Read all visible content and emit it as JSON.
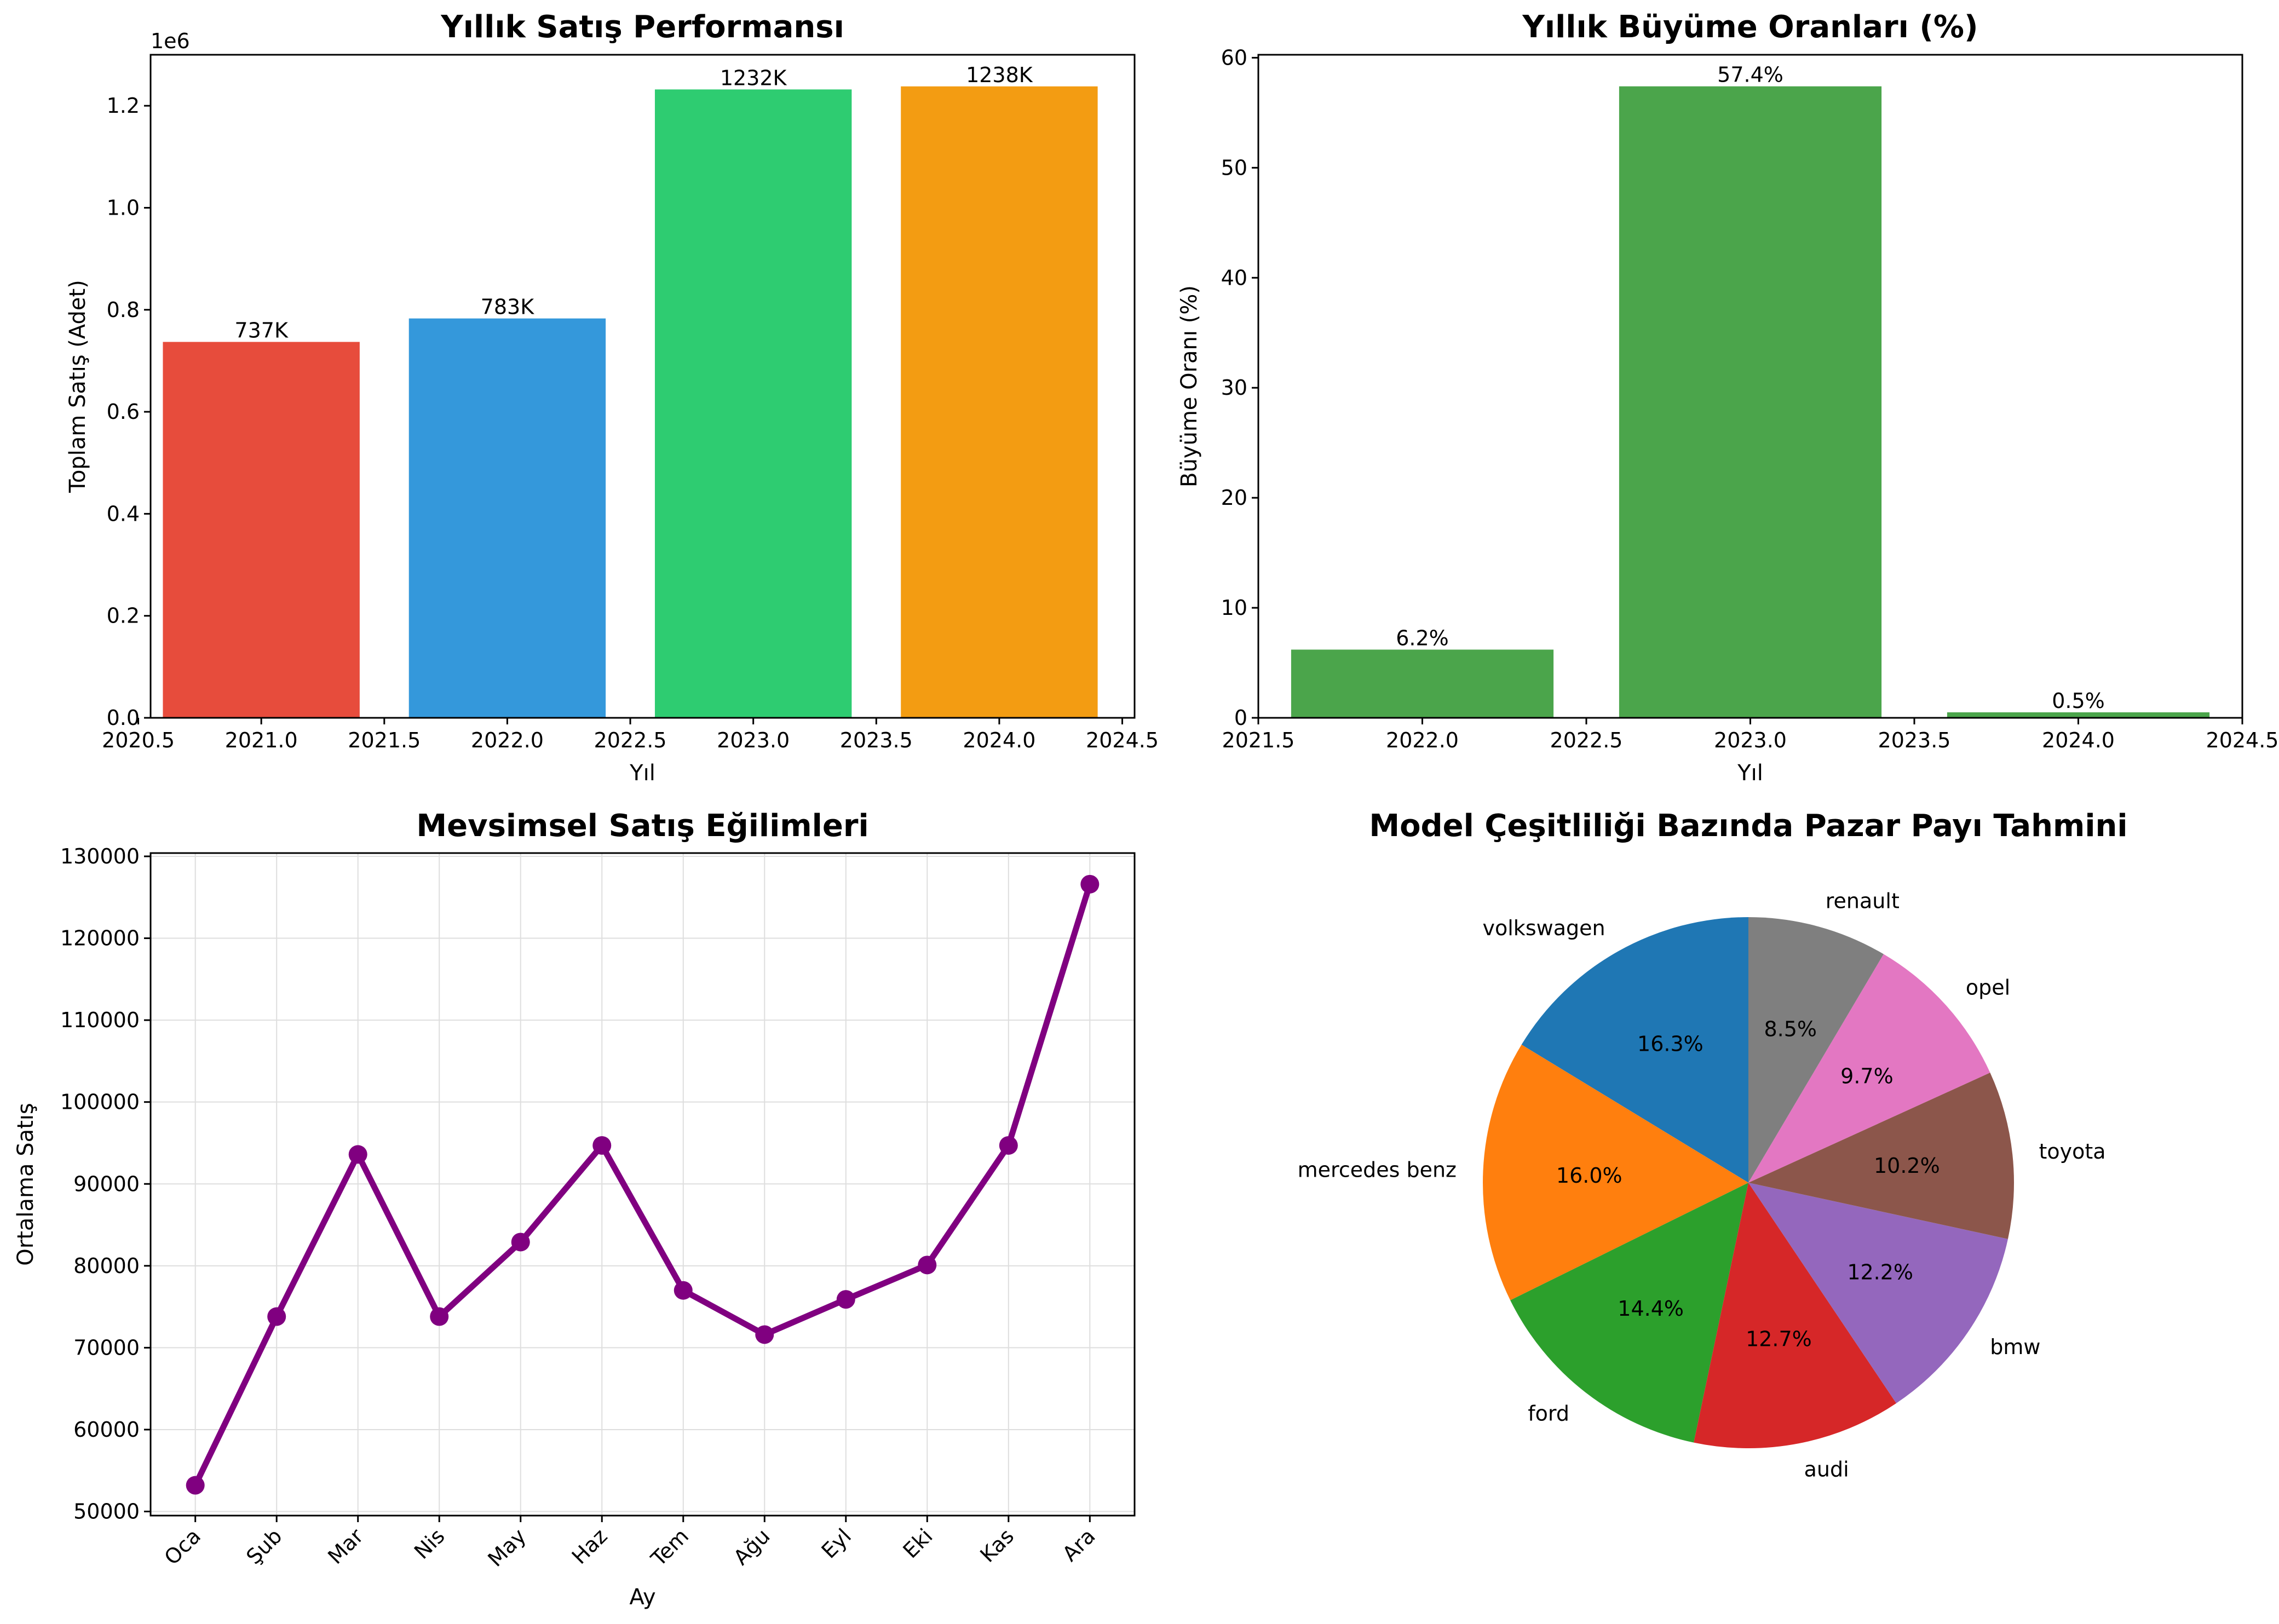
{
  "chart_data": [
    {
      "type": "bar",
      "title": "Yıllık Satış Performansı",
      "xlabel": "Yıl",
      "ylabel": "Toplam Satış (Adet)",
      "y_offset_label": "1e6",
      "x": [
        2021,
        2022,
        2023,
        2024
      ],
      "values": [
        737000,
        783000,
        1232000,
        1238000
      ],
      "data_labels": [
        "737K",
        "783K",
        "1232K",
        "1238K"
      ],
      "colors": [
        "#e74c3c",
        "#3498db",
        "#2ecc71",
        "#f39c12"
      ],
      "xlim": [
        2020.55,
        2024.55
      ],
      "ylim": [
        0,
        1300000
      ],
      "xticks": [
        "2020.5",
        "2021.0",
        "2021.5",
        "2022.0",
        "2022.5",
        "2023.0",
        "2023.5",
        "2024.0",
        "2024.5"
      ],
      "yticks": [
        "0.0",
        "0.2",
        "0.4",
        "0.6",
        "0.8",
        "1.0",
        "1.2"
      ],
      "grid": false
    },
    {
      "type": "bar",
      "title": "Yıllık Büyüme Oranları (%)",
      "xlabel": "Yıl",
      "ylabel": "Büyüme Oranı (%)",
      "x": [
        2022,
        2023,
        2024
      ],
      "values": [
        6.2,
        57.4,
        0.5
      ],
      "data_labels": [
        "6.2%",
        "57.4%",
        "0.5%"
      ],
      "color": "#4ba54b",
      "xlim": [
        2021.5,
        2024.5
      ],
      "ylim": [
        0,
        60.27
      ],
      "xticks": [
        "2021.5",
        "2022.0",
        "2022.5",
        "2023.0",
        "2023.5",
        "2024.0",
        "2024.5"
      ],
      "yticks": [
        "0",
        "10",
        "20",
        "30",
        "40",
        "50",
        "60"
      ],
      "grid": false
    },
    {
      "type": "line",
      "title": "Mevsimsel Satış Eğilimleri",
      "xlabel": "Ay",
      "ylabel": "Ortalama Satış",
      "categories": [
        "Oca",
        "Şub",
        "Mar",
        "Nis",
        "May",
        "Haz",
        "Tem",
        "Ağu",
        "Eyl",
        "Eki",
        "Kas",
        "Ara"
      ],
      "values": [
        53200,
        73800,
        93600,
        73800,
        82900,
        94700,
        77000,
        71600,
        75900,
        80100,
        94700,
        126600
      ],
      "color": "#800080",
      "ylim": [
        49500,
        130400
      ],
      "yticks": [
        "50000",
        "60000",
        "70000",
        "80000",
        "90000",
        "100000",
        "110000",
        "120000",
        "130000"
      ],
      "grid": true
    },
    {
      "type": "pie",
      "title": "Model Çeşitliliği Bazında Pazar Payı Tahmini",
      "labels": [
        "volkswagen",
        "mercedes benz",
        "ford",
        "audi",
        "bmw",
        "toyota",
        "opel",
        "renault"
      ],
      "values": [
        16.3,
        16.0,
        14.4,
        12.7,
        12.2,
        10.2,
        9.7,
        8.5
      ],
      "pct_labels": [
        "16.3%",
        "16.0%",
        "14.4%",
        "12.7%",
        "12.2%",
        "10.2%",
        "9.7%",
        "8.5%"
      ],
      "colors": [
        "#1f77b4",
        "#ff7f0e",
        "#2ca02c",
        "#d62728",
        "#9467bd",
        "#8c564b",
        "#e377c2",
        "#7f7f7f"
      ],
      "start_angle_deg": 90,
      "direction": "counterclockwise"
    }
  ]
}
